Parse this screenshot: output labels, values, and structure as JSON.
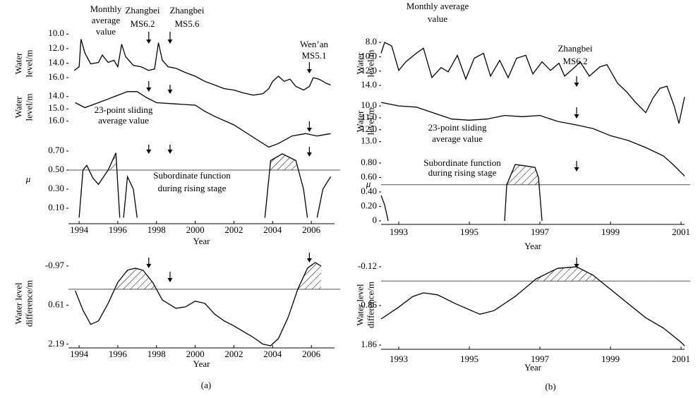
{
  "captions": [
    "(a)",
    "(b)"
  ],
  "chart_data": [
    {
      "type": "line",
      "ylabel": [
        "Water",
        "level/m"
      ],
      "xlim": [
        1993.45,
        2007.2
      ],
      "ylim": [
        18.9,
        9.2
      ],
      "yticks": [
        {
          "value": 10.0,
          "label": "10.0"
        },
        {
          "value": 12.0,
          "label": "12.0"
        },
        {
          "value": 14.0,
          "label": "14.0"
        },
        {
          "value": 16.0,
          "label": "16.0"
        }
      ],
      "x": [
        1993.75,
        1994.0,
        1994.1,
        1994.3,
        1994.6,
        1995.0,
        1995.2,
        1995.5,
        1995.8,
        1996.0,
        1996.2,
        1996.4,
        1996.8,
        1997.2,
        1997.6,
        1997.9,
        1998.1,
        1998.3,
        1998.6,
        1999.0,
        1999.5,
        2000.0,
        2000.5,
        2001.0,
        2001.5,
        2002.0,
        2002.5,
        2003.0,
        2003.5,
        2003.8,
        2004.0,
        2004.3,
        2004.6,
        2004.9,
        2005.2,
        2005.6,
        2005.9,
        2006.1,
        2006.4,
        2006.8,
        2007.0
      ],
      "values": [
        15.0,
        14.5,
        10.7,
        12.6,
        14.1,
        13.9,
        12.9,
        13.9,
        13.6,
        14.5,
        11.4,
        13.1,
        14.3,
        14.5,
        15.0,
        14.8,
        11.2,
        13.6,
        14.5,
        14.7,
        15.3,
        15.8,
        16.5,
        17.0,
        17.5,
        17.7,
        18.1,
        18.4,
        18.2,
        17.5,
        16.5,
        15.8,
        16.5,
        16.2,
        17.2,
        17.7,
        17.2,
        16.0,
        16.2,
        16.8,
        17.0
      ],
      "events": [
        1997.6,
        1998.7,
        2005.9
      ],
      "annotations": [
        {
          "lines": [
            "Monthly",
            "average",
            "value"
          ]
        },
        {
          "lines": [
            "Zhangbei",
            "MS6.2"
          ]
        },
        {
          "lines": [
            "Zhangbei",
            "MS5.6"
          ]
        },
        {
          "lines": [
            "Wen’an",
            "MS5.1"
          ]
        }
      ]
    },
    {
      "type": "line",
      "ylabel": [
        "Water",
        "level/m"
      ],
      "xlim": [
        1993.45,
        2007.2
      ],
      "ylim": [
        18.3,
        13.5
      ],
      "yticks": [
        {
          "value": 14.0,
          "label": "14.0"
        },
        {
          "value": 15.0,
          "label": "15.0"
        },
        {
          "value": 16.0,
          "label": "16.0"
        }
      ],
      "x": [
        1993.8,
        1994.3,
        1995.0,
        1995.5,
        1996.0,
        1996.5,
        1997.0,
        1997.5,
        1998.0,
        1999.0,
        2000.0,
        2000.5,
        2001.0,
        2002.0,
        2003.0,
        2003.8,
        2004.3,
        2005.0,
        2005.7,
        2006.3,
        2007.0
      ],
      "values": [
        14.5,
        14.9,
        14.5,
        14.2,
        13.9,
        13.6,
        13.6,
        14.1,
        14.5,
        14.6,
        14.7,
        15.2,
        15.6,
        16.3,
        17.3,
        18.1,
        17.8,
        17.2,
        17.0,
        17.2,
        17.0
      ],
      "events": [
        1997.6,
        1998.7,
        2005.9
      ],
      "annotations": [
        {
          "lines": [
            "23-point sliding",
            "average value"
          ]
        }
      ]
    },
    {
      "type": "line",
      "ylabel": [
        "μ"
      ],
      "xlim": [
        1993.45,
        2007.2
      ],
      "ylim": [
        0,
        0.74
      ],
      "reference_line": 0.5,
      "hatch": true,
      "yticks": [
        {
          "value": 0.7,
          "label": "0.70"
        },
        {
          "value": 0.5,
          "label": "0.50"
        },
        {
          "value": 0.3,
          "label": "0.30"
        },
        {
          "value": 0.1,
          "label": "0.10"
        }
      ],
      "xticks": [
        1994,
        1996,
        1998,
        2000,
        2002,
        2004,
        2006
      ],
      "xlabel": "Year",
      "x": [
        1994.0,
        1994.2,
        1994.4,
        1994.7,
        1995.0,
        1995.5,
        1995.9,
        1996.1,
        null,
        1996.3,
        1996.5,
        1996.8,
        1997.0,
        null,
        2003.6,
        2003.9,
        2004.5,
        2005.2,
        2005.6,
        2005.8,
        null,
        2006.3,
        2006.6,
        2007.0
      ],
      "values": [
        0,
        0.5,
        0.55,
        0.42,
        0.35,
        0.5,
        0.68,
        0,
        null,
        0,
        0.43,
        0.3,
        0,
        null,
        0,
        0.6,
        0.67,
        0.6,
        0.3,
        0,
        null,
        0,
        0.3,
        0.43
      ],
      "events": [
        1997.6,
        1998.7,
        2005.9
      ],
      "annotations": [
        {
          "lines": [
            "Subordinate function",
            "during rising stage"
          ]
        }
      ]
    },
    {
      "type": "line",
      "ylabel": [
        "Water level",
        "difference/m"
      ],
      "xlim": [
        1993.45,
        2007.2
      ],
      "ylim": [
        2.31,
        -1.31
      ],
      "reference_line": -0.03,
      "hatch": true,
      "yticks": [
        -0.97,
        0.61,
        2.19
      ],
      "xticks": [
        1994,
        1996,
        1998,
        2000,
        2002,
        2004,
        2006
      ],
      "xlabel": "Year",
      "x": [
        1993.8,
        1994.2,
        1994.6,
        1995.0,
        1995.5,
        1996.0,
        1996.5,
        1996.9,
        1997.3,
        1997.8,
        1998.3,
        1999.0,
        1999.5,
        2000.0,
        2000.5,
        2001.0,
        2001.5,
        2002.0,
        2002.5,
        2003.0,
        2003.5,
        2003.9,
        2004.3,
        2004.8,
        2005.3,
        2005.8,
        2006.2,
        2006.5
      ],
      "values": [
        0.03,
        0.82,
        1.39,
        1.25,
        0.54,
        -0.31,
        -0.8,
        -0.88,
        -0.8,
        -0.31,
        0.4,
        0.74,
        0.68,
        0.45,
        0.54,
        0.97,
        1.25,
        1.45,
        1.68,
        1.91,
        2.19,
        2.25,
        1.96,
        1.11,
        -0.03,
        -0.88,
        -1.11,
        -0.97
      ],
      "events": [
        1997.6,
        1998.7,
        2005.9
      ]
    },
    {
      "type": "line",
      "ylabel": [
        "Water",
        "level/m"
      ],
      "xlim": [
        1992.5,
        2001.1
      ],
      "ylim": [
        19.6,
        7.2
      ],
      "yticks": [
        {
          "value": 8.0,
          "label": "8.0"
        },
        {
          "value": 10.0,
          "label": "10.0"
        },
        {
          "value": 12.0,
          "label": "12.0"
        },
        {
          "value": 14.0,
          "label": "14.0"
        }
      ],
      "x": [
        1992.5,
        1992.6,
        1992.8,
        1993.0,
        1993.2,
        1993.5,
        1993.7,
        1993.94,
        1994.2,
        1994.4,
        1994.66,
        1994.9,
        1995.14,
        1995.4,
        1995.6,
        1995.86,
        1996.1,
        1996.34,
        1996.6,
        1996.8,
        1997.06,
        1997.3,
        1997.54,
        1997.7,
        1998.0,
        1998.14,
        1998.4,
        1998.7,
        1998.9,
        1999.2,
        1999.46,
        1999.7,
        2000.0,
        2000.2,
        2000.4,
        2000.6,
        2000.8,
        2000.94,
        2001.1
      ],
      "values": [
        9.5,
        8.0,
        8.5,
        11.9,
        10.7,
        9.5,
        8.8,
        12.9,
        11.5,
        12.1,
        9.8,
        13.1,
        10.2,
        9.5,
        12.7,
        10.5,
        12.9,
        10.2,
        9.8,
        12.4,
        10.7,
        11.9,
        10.9,
        12.7,
        11.4,
        10.7,
        12.7,
        11.4,
        11.1,
        13.7,
        14.9,
        16.3,
        17.8,
        15.8,
        14.4,
        14.1,
        16.8,
        19.3,
        15.6
      ],
      "events": [
        1998.04
      ],
      "annotations": [
        {
          "lines": [
            "Monthly average",
            "value"
          ]
        },
        {
          "lines": [
            "Zhangbei",
            "MS6.2"
          ]
        }
      ]
    },
    {
      "type": "line",
      "ylabel": [
        "Water",
        "level/m"
      ],
      "xlim": [
        1992.5,
        2001.1
      ],
      "ylim": [
        16.4,
        9.4
      ],
      "yticks": [
        {
          "value": 10.0,
          "label": "10.0"
        },
        {
          "value": 11.0,
          "label": "11.0"
        },
        {
          "value": 12.0,
          "label": "12.0"
        },
        {
          "value": 13.0,
          "label": "13.0"
        }
      ],
      "x": [
        1992.5,
        1993.0,
        1993.5,
        1994.0,
        1994.5,
        1995.0,
        1995.5,
        1996.0,
        1996.5,
        1997.0,
        1997.5,
        1998.04,
        1998.5,
        1999.0,
        1999.5,
        2000.0,
        2000.5,
        2000.8,
        2001.1
      ],
      "values": [
        9.7,
        10.0,
        10.1,
        10.6,
        11.1,
        11.2,
        11.1,
        10.8,
        10.9,
        10.8,
        11.3,
        11.6,
        11.9,
        12.5,
        12.9,
        13.5,
        14.2,
        15.0,
        15.9
      ],
      "events": [
        1998.04
      ],
      "annotations": [
        {
          "lines": [
            "23-point sliding",
            "average value"
          ]
        }
      ]
    },
    {
      "type": "line",
      "ylabel": [
        "μ"
      ],
      "xlim": [
        1992.5,
        2001.1
      ],
      "ylim": [
        0,
        0.9
      ],
      "reference_line": 0.5,
      "hatch": true,
      "yticks": [
        {
          "value": 0.8,
          "label": "0.80"
        },
        {
          "value": 0.6,
          "label": "0.60"
        },
        {
          "value": 0.4,
          "label": "0.40"
        },
        {
          "value": 0.2,
          "label": "0.20"
        },
        0
      ],
      "xticks": [
        1993,
        1995,
        1997,
        1999,
        2001
      ],
      "xlabel": "Year",
      "x": [
        1992.5,
        1992.6,
        1992.7,
        null,
        1996.0,
        1996.06,
        1996.3,
        1996.6,
        1996.86,
        1996.96,
        1997.06
      ],
      "values": [
        0.35,
        0.22,
        0,
        null,
        0,
        0.5,
        0.78,
        0.76,
        0.74,
        0.6,
        0
      ],
      "events": [
        1998.04
      ],
      "annotations": [
        {
          "lines": [
            "Subordinate function",
            "during rising stage"
          ]
        }
      ]
    },
    {
      "type": "line",
      "ylabel": [
        "Water level",
        "difference/m"
      ],
      "xlim": [
        1992.5,
        2001.1
      ],
      "ylim": [
        1.95,
        -0.3
      ],
      "reference_line": 0.24,
      "hatch": true,
      "yticks": [
        -0.12,
        0.86,
        1.86
      ],
      "xticks": [
        1993,
        1995,
        1997,
        1999,
        2001
      ],
      "xlabel": "Year",
      "x": [
        1992.5,
        1993.0,
        1993.4,
        1993.7,
        1994.1,
        1994.6,
        1995.3,
        1995.7,
        1996.3,
        1996.9,
        1997.5,
        1998.04,
        1998.5,
        1999.0,
        1999.5,
        2000.0,
        2000.5,
        2001.0,
        2001.1
      ],
      "values": [
        1.2,
        0.9,
        0.63,
        0.54,
        0.59,
        0.81,
        1.08,
        0.99,
        0.63,
        0.18,
        -0.08,
        -0.12,
        0.09,
        0.45,
        0.81,
        1.17,
        1.43,
        1.79,
        1.88
      ],
      "events": [
        1998.04
      ]
    }
  ]
}
